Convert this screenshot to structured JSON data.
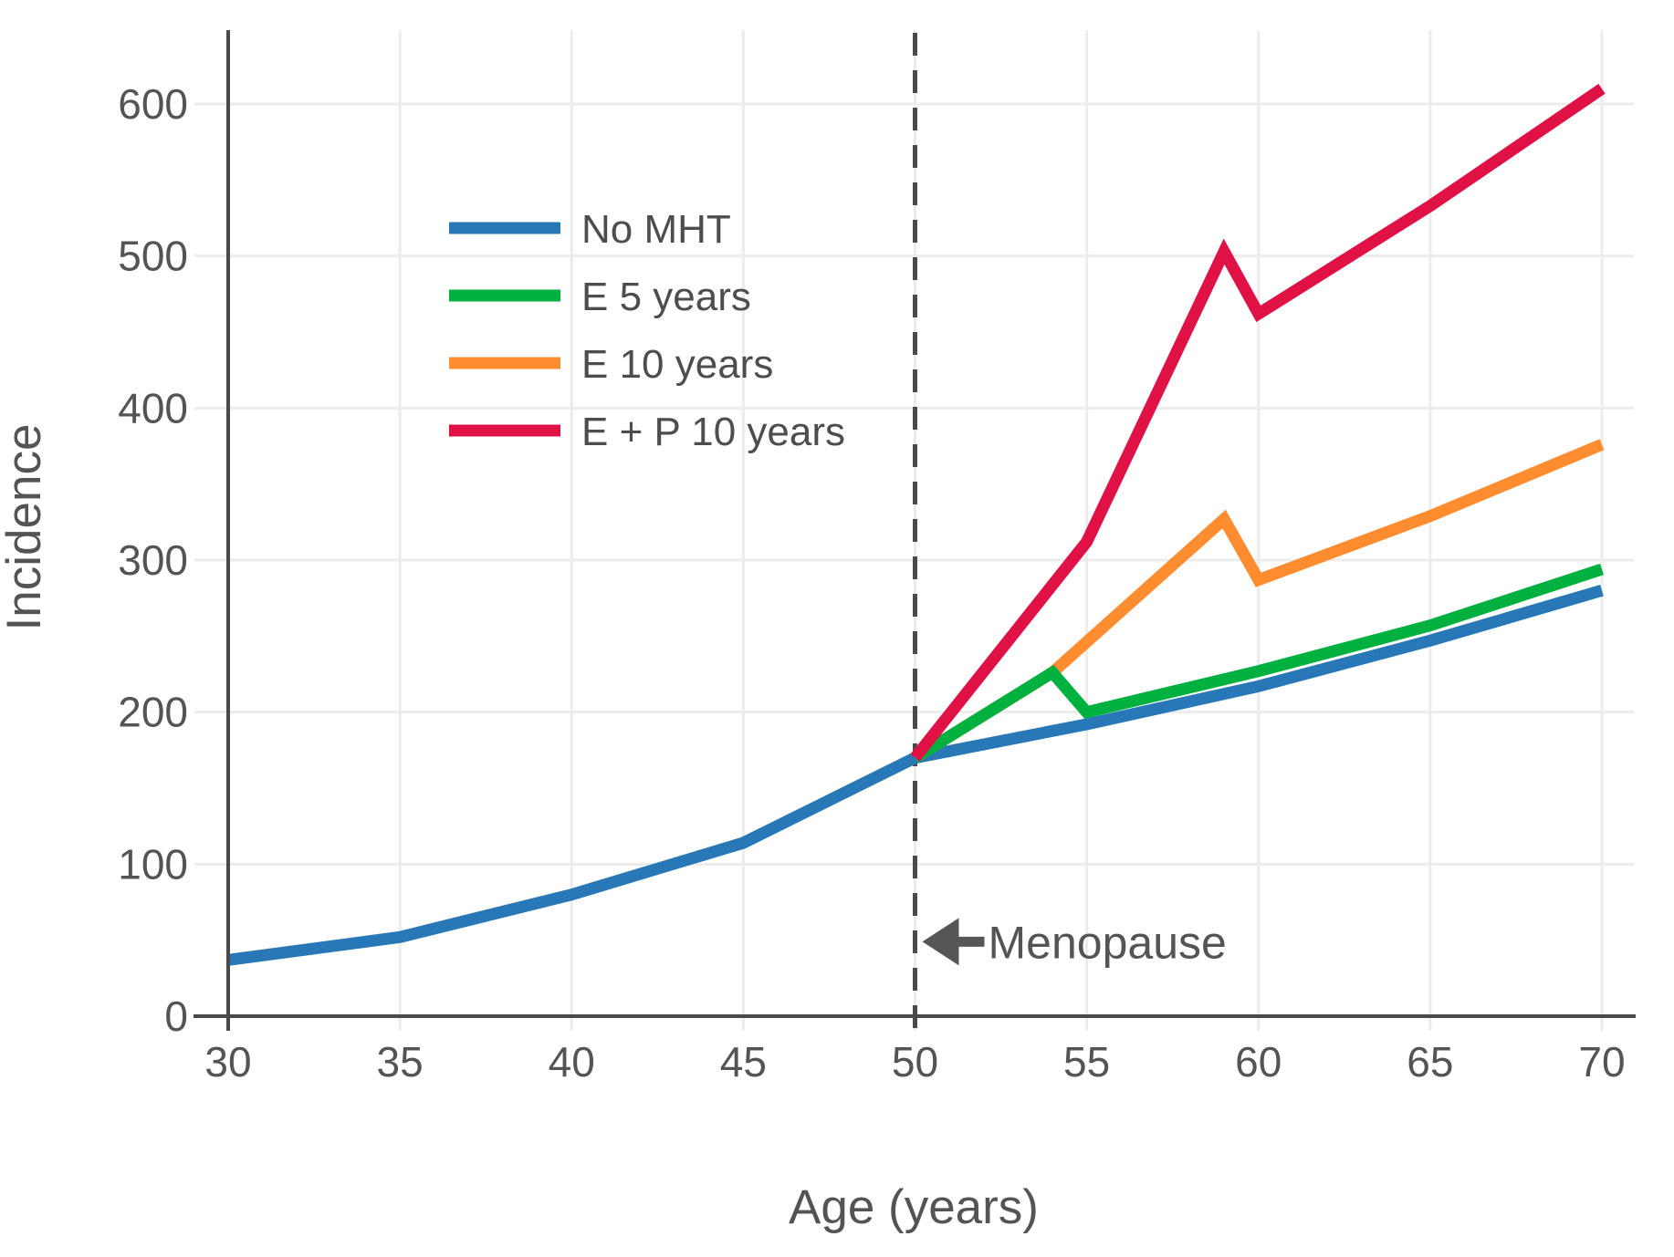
{
  "chart_data": {
    "type": "line",
    "title": "",
    "xlabel": "Age (years)",
    "ylabel": "Incidence",
    "x_ticks": [
      30,
      35,
      40,
      45,
      50,
      55,
      60,
      65,
      70
    ],
    "y_ticks": [
      0,
      100,
      200,
      300,
      400,
      500,
      600
    ],
    "xlim": [
      30,
      70.9
    ],
    "ylim": [
      0,
      650
    ],
    "grid": true,
    "legend_position": "upper left inside plot",
    "vline": {
      "x": 50,
      "style": "dashed"
    },
    "annotation": {
      "text": "Menopause",
      "arrow_direction": "left",
      "points_to_x": 50,
      "at_y_value": 49
    },
    "series": [
      {
        "name": "No MHT",
        "color": "#2878b8",
        "points": [
          [
            30,
            37
          ],
          [
            35,
            52
          ],
          [
            40,
            80
          ],
          [
            45,
            114
          ],
          [
            50,
            170
          ],
          [
            55,
            192
          ],
          [
            60,
            217
          ],
          [
            65,
            247
          ],
          [
            70,
            280
          ]
        ]
      },
      {
        "name": "E 5 years",
        "color": "#00b140",
        "points": [
          [
            50,
            170
          ],
          [
            54,
            226
          ],
          [
            55,
            200
          ],
          [
            60,
            227
          ],
          [
            65,
            257
          ],
          [
            70,
            294
          ]
        ]
      },
      {
        "name": "E 10 years",
        "color": "#ff8c2f",
        "points": [
          [
            50,
            170
          ],
          [
            54,
            226
          ],
          [
            59,
            327
          ],
          [
            60,
            287
          ],
          [
            65,
            329
          ],
          [
            70,
            376
          ]
        ]
      },
      {
        "name": "E + P 10 years",
        "color": "#e01245",
        "points": [
          [
            50,
            170
          ],
          [
            55,
            312
          ],
          [
            59,
            503
          ],
          [
            60,
            462
          ],
          [
            65,
            533
          ],
          [
            70,
            610
          ]
        ]
      }
    ],
    "colors": {
      "axis": "#4a4a4c",
      "grid": "#ececec",
      "text": "#545457",
      "dashed_line": "#4a4a4c",
      "arrow": "#565659"
    }
  }
}
